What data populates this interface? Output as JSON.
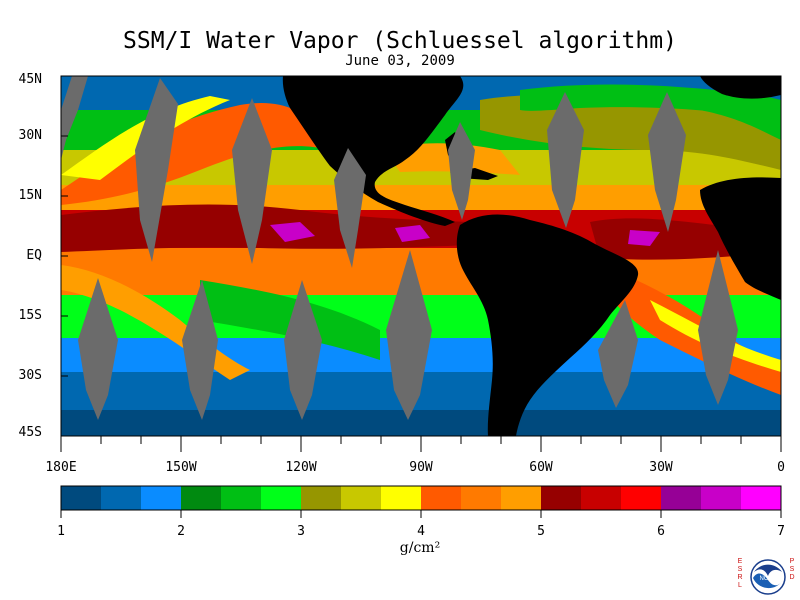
{
  "header": {
    "title": "SSM/I Water Vapor (Schluessel algorithm)",
    "date": "June 03, 2009"
  },
  "map": {
    "lat_labels": [
      "45N",
      "30N",
      "15N",
      "EQ",
      "15S",
      "30S",
      "45S"
    ],
    "lon_labels": [
      "180E",
      "150W",
      "120W",
      "90W",
      "60W",
      "30W",
      "0"
    ],
    "no_data_color": "#6b6b6b",
    "land_color": "#000000"
  },
  "colorbar": {
    "colors": [
      "#004a7e",
      "#0068b0",
      "#0a8cff",
      "#008a10",
      "#00bf14",
      "#00ff19",
      "#969600",
      "#c8c800",
      "#ffff00",
      "#ff5a00",
      "#ff7a00",
      "#ff9e00",
      "#960000",
      "#c80000",
      "#ff0000",
      "#960096",
      "#c800c8",
      "#ff00ff"
    ],
    "tick_labels": [
      "1",
      "2",
      "3",
      "4",
      "5",
      "6",
      "7"
    ],
    "unit": "g/cm²"
  },
  "logo": {
    "left_letters": [
      "E",
      "S",
      "R",
      "L"
    ],
    "right_letters": [
      "P",
      "S",
      "D"
    ],
    "badge_text": "NOAA"
  }
}
